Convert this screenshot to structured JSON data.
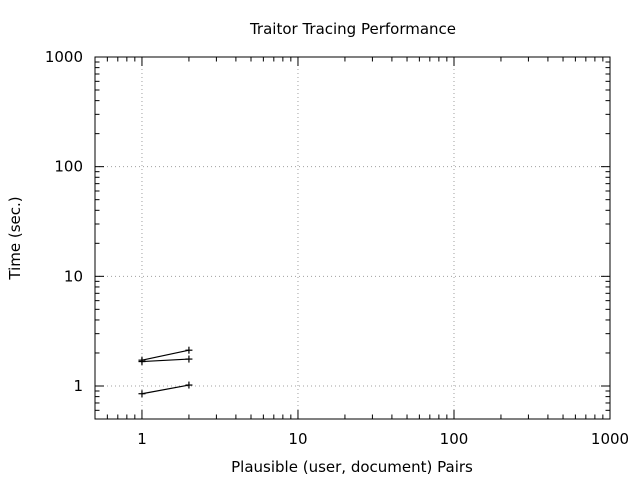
{
  "chart_data": {
    "type": "line",
    "title": "Traitor Tracing Performance",
    "xlabel": "Plausible (user, document) Pairs",
    "ylabel": "Time (sec.)",
    "xscale": "log",
    "yscale": "log",
    "xlim": [
      0.5,
      1000
    ],
    "ylim": [
      0.5,
      1000
    ],
    "xticks": [
      {
        "value": 1,
        "label": "1"
      },
      {
        "value": 10,
        "label": "10"
      },
      {
        "value": 100,
        "label": "100"
      },
      {
        "value": 1000,
        "label": "1000"
      }
    ],
    "yticks": [
      {
        "value": 1,
        "label": "1"
      },
      {
        "value": 10,
        "label": "10"
      },
      {
        "value": 100,
        "label": "100"
      },
      {
        "value": 1000,
        "label": "1000"
      }
    ],
    "grid": true,
    "series": [
      {
        "x": [
          1,
          2
        ],
        "y": [
          1.72,
          2.12
        ]
      },
      {
        "x": [
          1,
          2
        ],
        "y": [
          1.67,
          1.76
        ]
      },
      {
        "x": [
          1,
          2
        ],
        "y": [
          0.85,
          1.02
        ]
      }
    ],
    "colors": {
      "line": "#000000",
      "grid": "#a0a0a0"
    }
  }
}
